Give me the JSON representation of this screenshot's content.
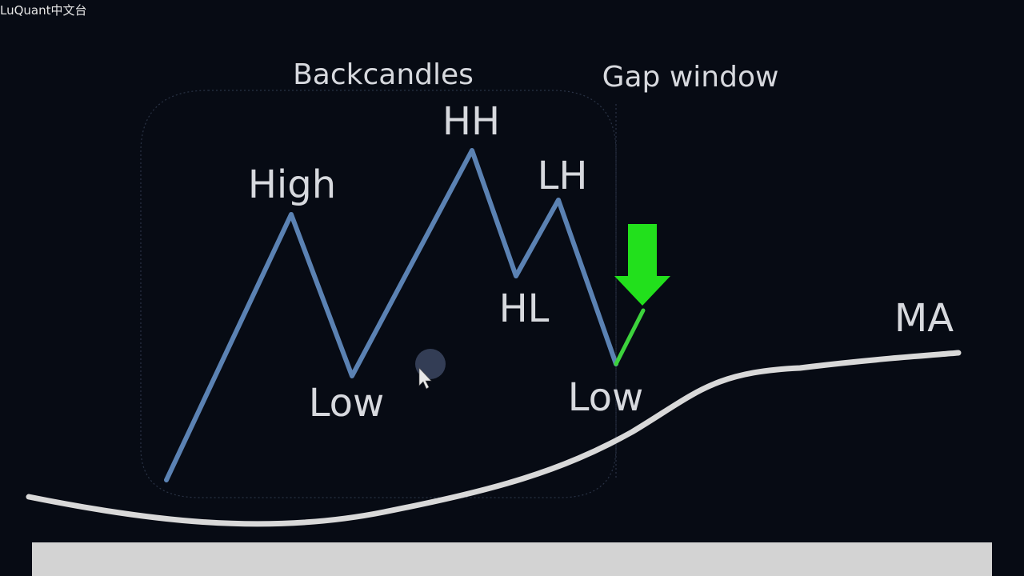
{
  "watermark": "LuQuant中文台",
  "labels": {
    "backcandles": "Backcandles",
    "gap_window": "Gap window",
    "high": "High",
    "hh": "HH",
    "lh": "LH",
    "hl": "HL",
    "low_left": "Low",
    "low_right": "Low",
    "ma": "MA"
  },
  "colors": {
    "background": "#070b14",
    "price_line": "#5b82b3",
    "ma_line": "#d9d9d9",
    "signal_line": "#3cd23c",
    "arrow": "#22e01c",
    "label_text": "#d7d9de",
    "bottom_bar": "#d3d3d3"
  },
  "icons": {
    "arrow": "down-arrow-icon",
    "cursor": "mouse-cursor-icon"
  }
}
